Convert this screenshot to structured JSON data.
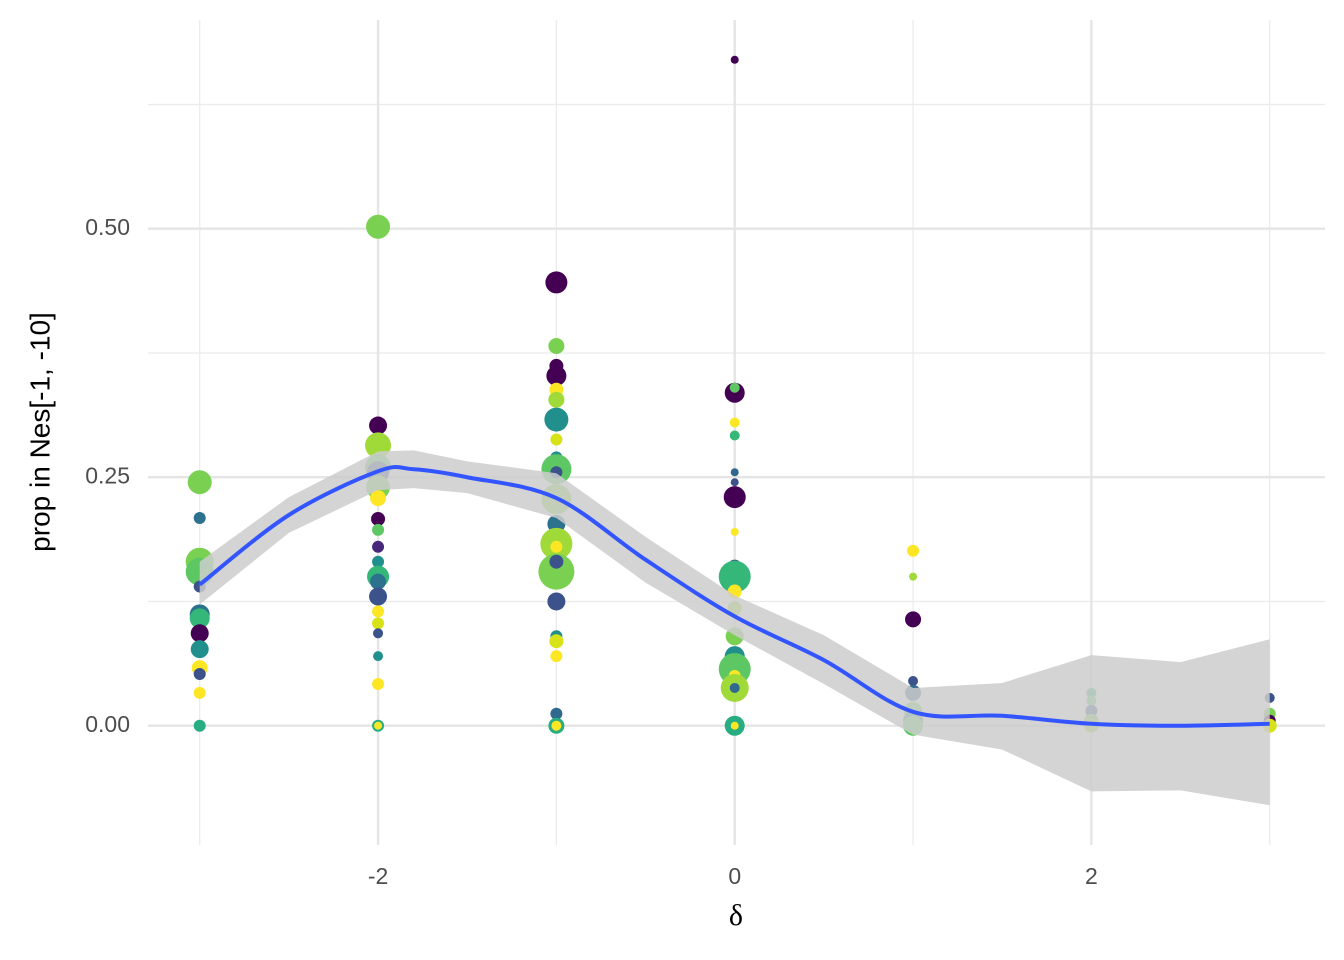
{
  "chart_data": {
    "type": "scatter",
    "xlabel": "δ",
    "ylabel": "prop in Nes[-1, -10]",
    "xlim": [
      -3.29,
      3.31
    ],
    "ylim": [
      -0.12,
      0.71
    ],
    "xticks": [
      -2,
      0,
      2
    ],
    "xticks_minor": [
      -3,
      -1,
      1,
      3
    ],
    "yticks": [
      {
        "value": 0,
        "label": "0.00"
      },
      {
        "value": 0.25,
        "label": "0.25"
      },
      {
        "value": 0.5,
        "label": "0.50"
      }
    ],
    "yticks_minor": [
      0.125,
      0.375,
      0.625
    ],
    "grid": true,
    "x": [
      -3,
      -3,
      -3,
      -3,
      -3,
      -3,
      -3,
      -3,
      -3,
      -3,
      -3,
      -3,
      -3,
      -2,
      -2,
      -2,
      -2,
      -2,
      -2,
      -2,
      -2,
      -2,
      -2,
      -2,
      -2,
      -2,
      -2,
      -2,
      -2,
      -2,
      -2,
      -2,
      -2,
      -2,
      -1,
      -1,
      -1,
      -1,
      -1,
      -1,
      -1,
      -1,
      -1,
      -1,
      -1,
      -1,
      -1,
      -1,
      -1,
      -1,
      -1,
      -1,
      -1,
      -1,
      -1,
      -1,
      -1,
      -1,
      0,
      0,
      0,
      0,
      0,
      0,
      0,
      0,
      0,
      0,
      0,
      0,
      0,
      0,
      0,
      0,
      0,
      0,
      0,
      0,
      0,
      1,
      1,
      1,
      1,
      1,
      1,
      1,
      1,
      2,
      2,
      2,
      2,
      2,
      3,
      3,
      3,
      3
    ],
    "y": [
      0.245,
      0.209,
      0.165,
      0.155,
      0.14,
      0.112,
      0.108,
      0.093,
      0.077,
      0.058,
      0.052,
      0.033,
      0,
      0.502,
      0.302,
      0.282,
      0.26,
      0.255,
      0.24,
      0.229,
      0.208,
      0.197,
      0.18,
      0.165,
      0.15,
      0.145,
      0.13,
      0.115,
      0.103,
      0.093,
      0.07,
      0.042,
      0,
      0,
      0.446,
      0.382,
      0.362,
      0.352,
      0.338,
      0.328,
      0.308,
      0.288,
      0.27,
      0.258,
      0.255,
      0.228,
      0.203,
      0.183,
      0.18,
      0.155,
      0.165,
      0.125,
      0.09,
      0.085,
      0.07,
      0.012,
      0,
      0,
      0.67,
      0.335,
      0.34,
      0.305,
      0.292,
      0.255,
      0.245,
      0.23,
      0.195,
      0.16,
      0.15,
      0.135,
      0.118,
      0.09,
      0.07,
      0.057,
      0.05,
      0.038,
      0.038,
      0,
      0,
      0.176,
      0.15,
      0.107,
      0.045,
      0.033,
      0.015,
      0.005,
      0,
      0.033,
      0.025,
      0.015,
      0.005,
      0,
      0.028,
      0.012,
      0.005,
      0
    ],
    "sizes": [
      12,
      6,
      14,
      14,
      6,
      10,
      10,
      9,
      9,
      8,
      6,
      6,
      6,
      12,
      9,
      13,
      13,
      11,
      12,
      8,
      7,
      6,
      6,
      6,
      11,
      8,
      9,
      6,
      6,
      5,
      5,
      6,
      6,
      4,
      11,
      8,
      7,
      10,
      7,
      8,
      12,
      6,
      6,
      15,
      6,
      15,
      9,
      16,
      6,
      18,
      7,
      9,
      6,
      7,
      6,
      6,
      8,
      5,
      4,
      10,
      5,
      5,
      5,
      4,
      4,
      11,
      4,
      7,
      16,
      7,
      7,
      9,
      10,
      16,
      6,
      14,
      5,
      10,
      4,
      6,
      4,
      8,
      5,
      8,
      9,
      10,
      10,
      5,
      5,
      6,
      7,
      7,
      5,
      6,
      6,
      7
    ],
    "colors": [
      "#7ad151",
      "#2c728e",
      "#7ad151",
      "#5dc863",
      "#3b528b",
      "#2c728e",
      "#35b779",
      "#440154",
      "#21908c",
      "#fde725",
      "#3b528b",
      "#fde725",
      "#27ad81",
      "#7ad151",
      "#440154",
      "#a0da39",
      "#5dc863",
      "#3b528b",
      "#7ad151",
      "#fde725",
      "#440154",
      "#5dc863",
      "#482878",
      "#21908c",
      "#35b779",
      "#2c728e",
      "#3b528b",
      "#fde725",
      "#d8e219",
      "#3b528b",
      "#21908c",
      "#fde725",
      "#27ad81",
      "#fde725",
      "#440154",
      "#7ad151",
      "#440154",
      "#440154",
      "#fde725",
      "#a0da39",
      "#21908c",
      "#d8e219",
      "#21908c",
      "#5dc863",
      "#3b528b",
      "#8fd744",
      "#2c728e",
      "#a0da39",
      "#fde725",
      "#7ad151",
      "#3b528b",
      "#3b528b",
      "#21908c",
      "#d8e219",
      "#fde725",
      "#31688e",
      "#27ad81",
      "#fde725",
      "#440154",
      "#440154",
      "#5dc863",
      "#fde725",
      "#35b779",
      "#31688e",
      "#3b528b",
      "#440154",
      "#fde725",
      "#3b528b",
      "#35b779",
      "#fde725",
      "#a0da39",
      "#7ad151",
      "#21908c",
      "#5dc863",
      "#fde725",
      "#a0da39",
      "#31688e",
      "#27ad81",
      "#fde725",
      "#fde725",
      "#a0da39",
      "#440154",
      "#3b528b",
      "#31688e",
      "#7ad151",
      "#21908c",
      "#5dc863",
      "#35b779",
      "#5dc863",
      "#3b528b",
      "#7ad151",
      "#a0da39",
      "#3b528b",
      "#7ad151",
      "#440154",
      "#d8e219"
    ],
    "smooth": {
      "color": "#3355ff",
      "band_color": "#cccccc",
      "x": [
        -3,
        -2.5,
        -2,
        -1.8,
        -1.5,
        -1,
        -0.5,
        0,
        0.5,
        1,
        1.5,
        2,
        2.5,
        3
      ],
      "y": [
        0.142,
        0.212,
        0.256,
        0.258,
        0.25,
        0.229,
        0.167,
        0.11,
        0.066,
        0.014,
        0.01,
        0.002,
        0,
        0.002
      ],
      "upper": [
        0.165,
        0.23,
        0.276,
        0.277,
        0.266,
        0.254,
        0.19,
        0.131,
        0.091,
        0.038,
        0.043,
        0.071,
        0.064,
        0.087
      ],
      "lower": [
        0.122,
        0.194,
        0.237,
        0.239,
        0.234,
        0.209,
        0.144,
        0.091,
        0.042,
        -0.009,
        -0.024,
        -0.066,
        -0.065,
        -0.08
      ]
    }
  }
}
